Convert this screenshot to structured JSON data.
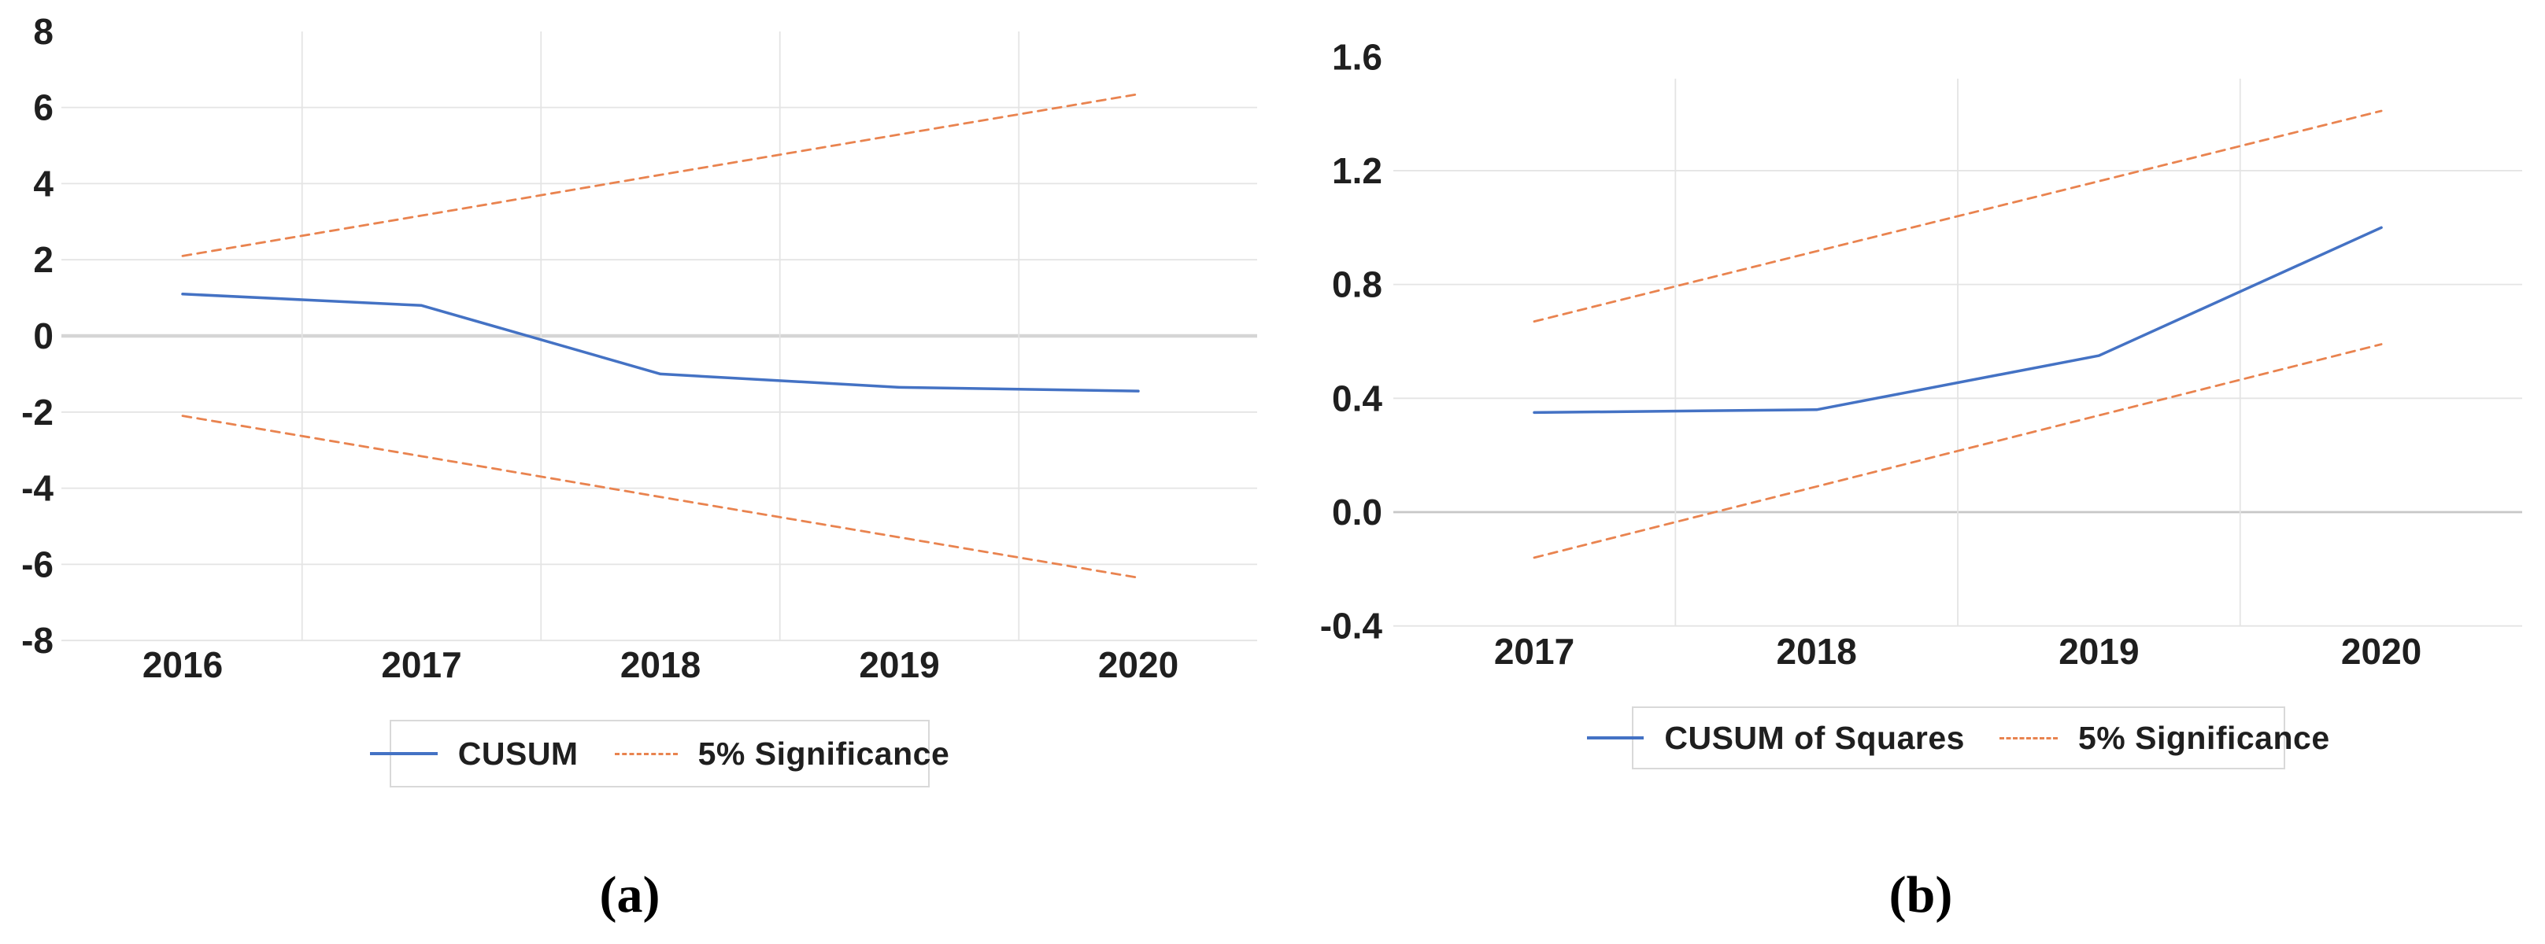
{
  "captions": {
    "a": "(a)",
    "b": "(b)"
  },
  "colors": {
    "background": "#FFFFFF",
    "blue": "#4472C4",
    "orange": "#E9834F",
    "grid": "#E4E4E4",
    "zero_line_a": "#D5D5D5",
    "zero_line_b": "#C7C7C7",
    "text": "#1F1F1F",
    "legend_border": "#D9D9D9"
  },
  "chart_data": [
    {
      "id": "panel-a",
      "type": "line",
      "title": "",
      "xlabel": "",
      "ylabel": "",
      "categories": [
        "2016",
        "2017",
        "2018",
        "2019",
        "2020"
      ],
      "ylim": [
        -8,
        8
      ],
      "yticks": [
        8,
        6,
        4,
        2,
        0,
        -2,
        -4,
        -6,
        -8
      ],
      "ytick_labels": [
        "8",
        "6",
        "4",
        "2",
        "0",
        "-2",
        "-4",
        "-6",
        "-8"
      ],
      "grid": true,
      "legend_position": "bottom",
      "legend": [
        "CUSUM",
        "5% Significance"
      ],
      "series": [
        {
          "name": "CUSUM",
          "style": "solid",
          "color": "blue",
          "values": [
            1.1,
            0.8,
            -1.0,
            -1.35,
            -1.45
          ]
        },
        {
          "name": "5% Significance (upper)",
          "style": "dashed",
          "color": "orange",
          "values": [
            2.1,
            3.16,
            4.23,
            5.29,
            6.35
          ]
        },
        {
          "name": "5% Significance (lower)",
          "style": "dashed",
          "color": "orange",
          "values": [
            -2.1,
            -3.16,
            -4.23,
            -5.29,
            -6.35
          ]
        }
      ]
    },
    {
      "id": "panel-b",
      "type": "line",
      "title": "",
      "xlabel": "",
      "ylabel": "",
      "categories": [
        "2017",
        "2018",
        "2019",
        "2020"
      ],
      "ylim": [
        -0.4,
        1.6
      ],
      "yticks": [
        1.6,
        1.2,
        0.8,
        0.4,
        0,
        -0.4
      ],
      "ytick_labels": [
        "1.6",
        "1.2",
        "0.8",
        "0.4",
        "0.0",
        "-0.4"
      ],
      "grid": true,
      "legend_position": "bottom",
      "legend": [
        "CUSUM of Squares",
        "5% Significance"
      ],
      "series": [
        {
          "name": "CUSUM of Squares",
          "style": "solid",
          "color": "blue",
          "values": [
            0.35,
            0.36,
            0.55,
            1.0
          ]
        },
        {
          "name": "5% Significance (upper)",
          "style": "dashed",
          "color": "orange",
          "values": [
            0.67,
            0.917,
            1.163,
            1.41
          ]
        },
        {
          "name": "5% Significance (lower)",
          "style": "dashed",
          "color": "orange",
          "values": [
            -0.16,
            0.09,
            0.34,
            0.59
          ]
        }
      ]
    }
  ]
}
